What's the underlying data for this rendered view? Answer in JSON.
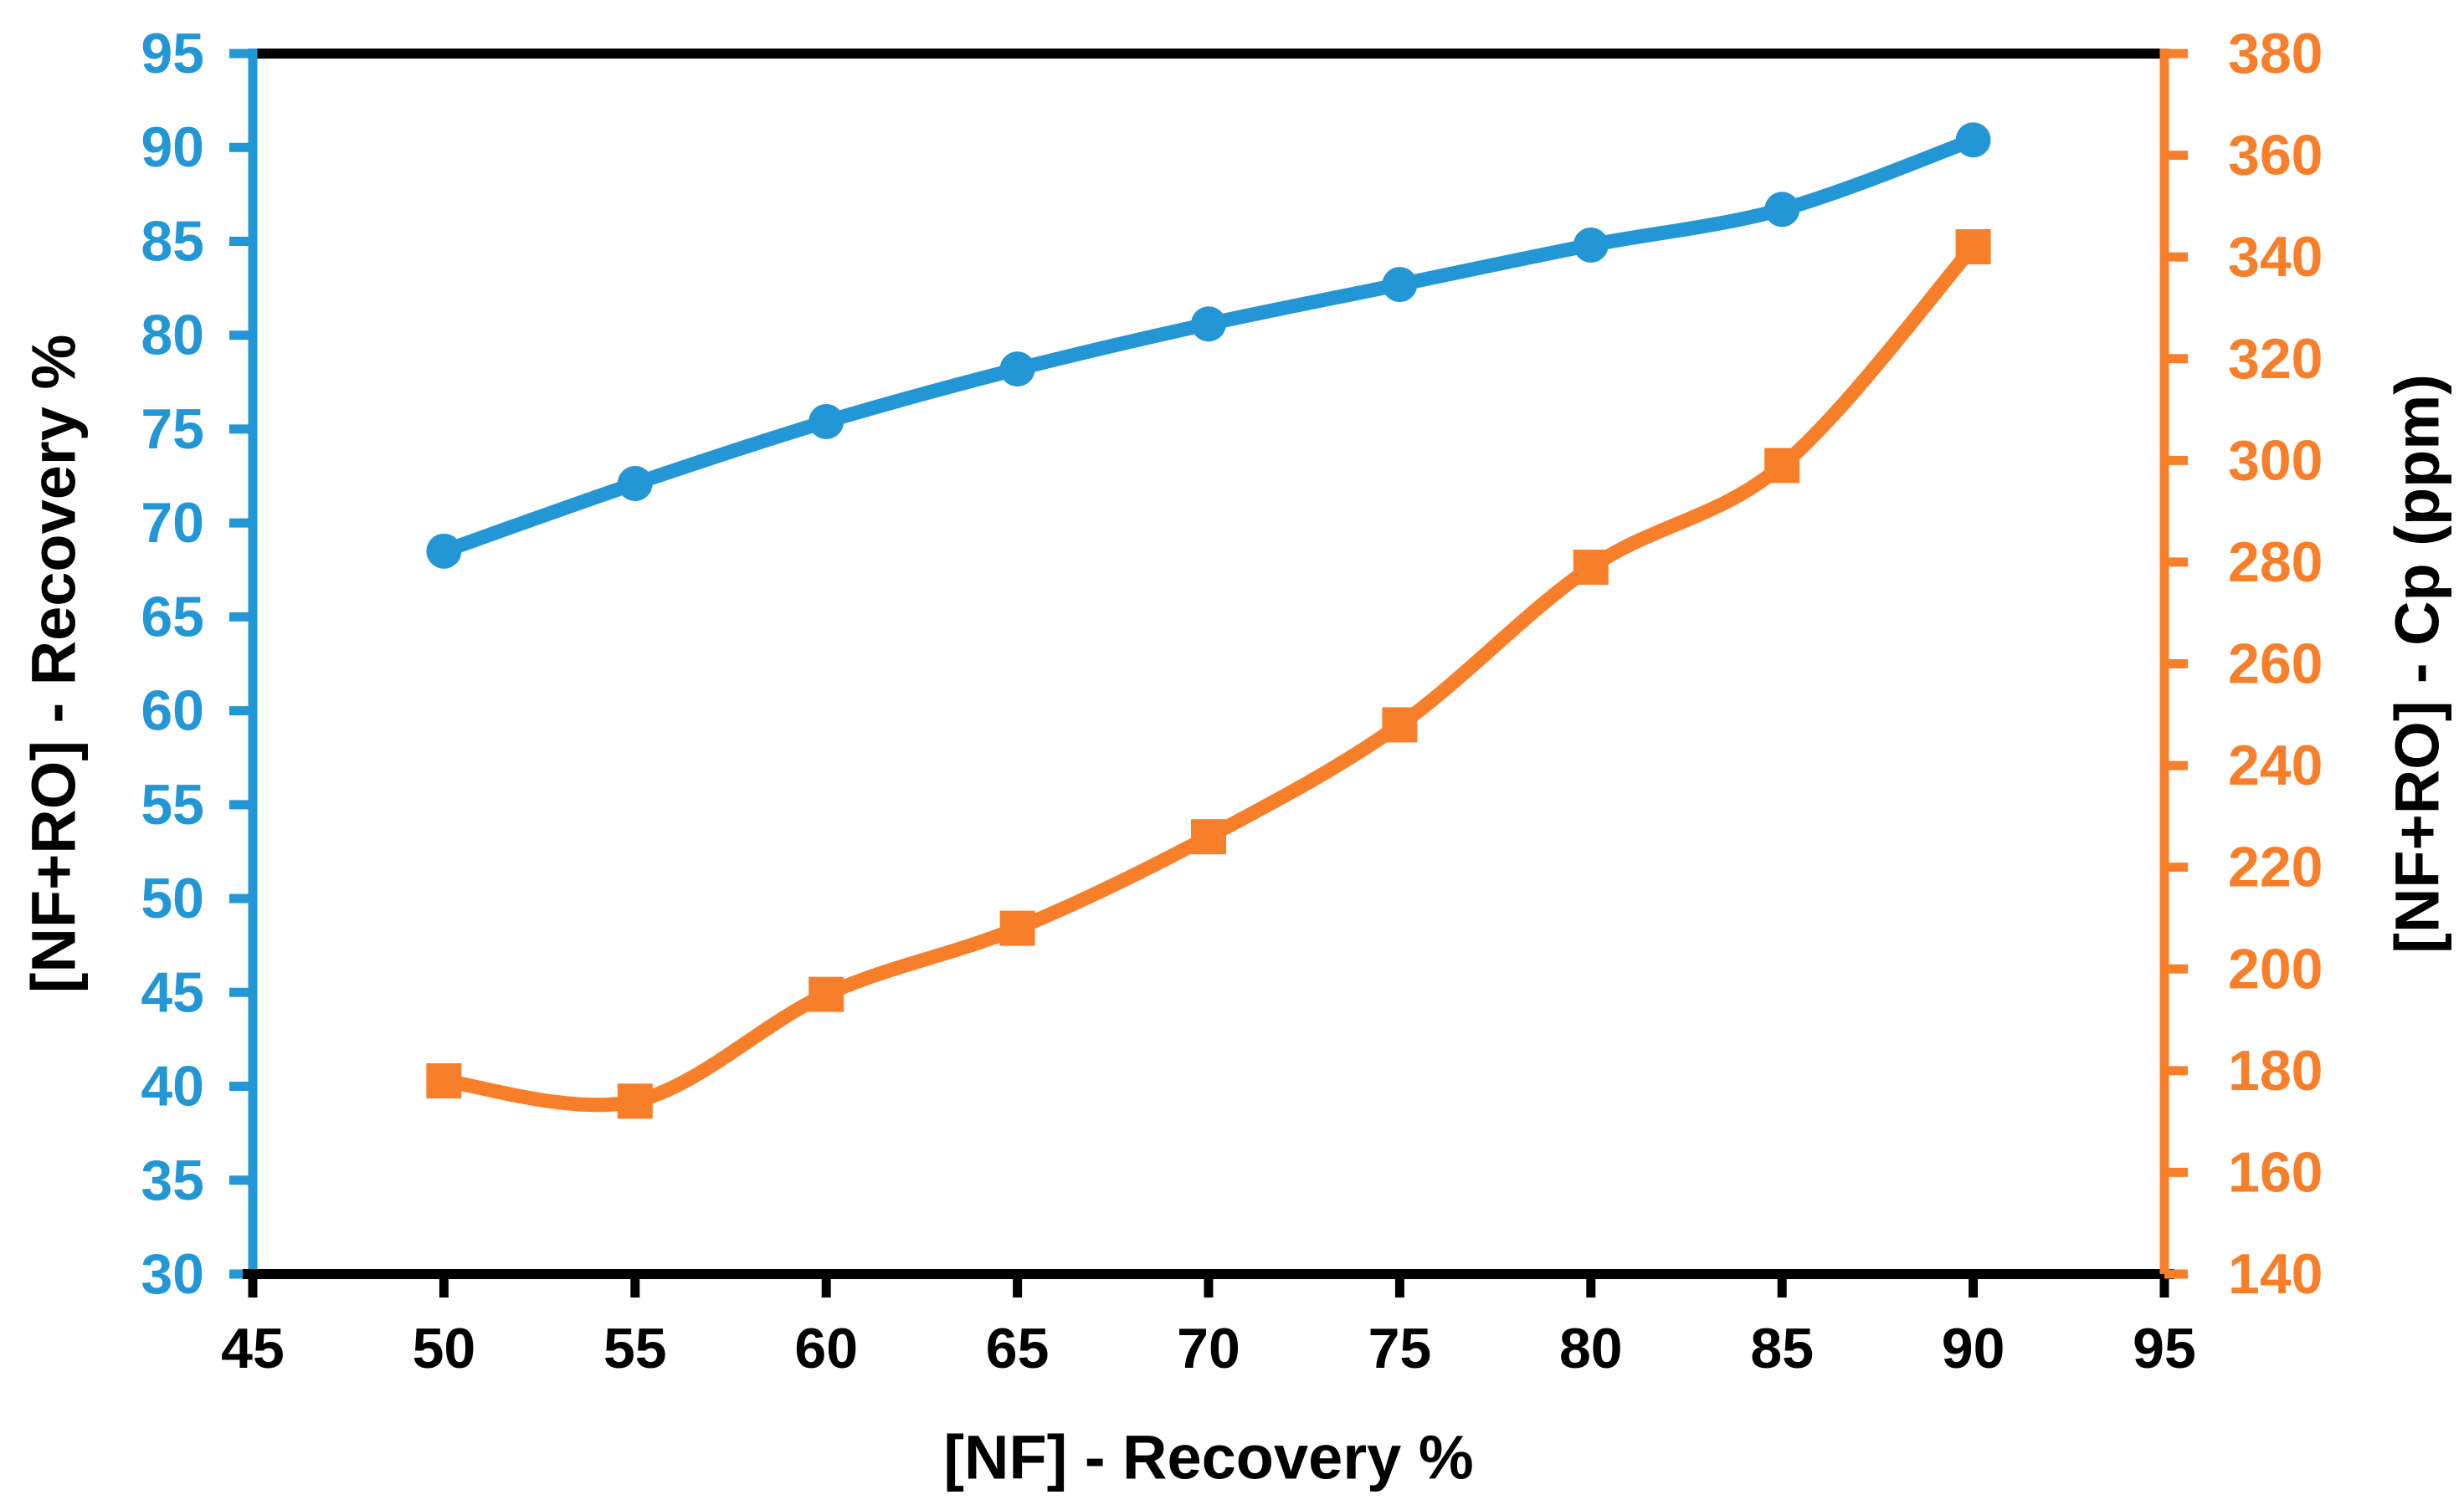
{
  "chart_data": {
    "type": "line",
    "title": "",
    "grid": false,
    "legend": "none",
    "background_color": "#ffffff",
    "x": [
      50,
      55,
      60,
      65,
      70,
      75,
      80,
      85,
      90
    ],
    "series": [
      {
        "name": "[NF+RO] - Recovery %",
        "axis": "left",
        "color": "#2397D5",
        "marker": "circle",
        "line_width": 17,
        "values": [
          68.5,
          72.1,
          75.4,
          78.2,
          80.6,
          82.7,
          84.8,
          86.7,
          90.4
        ]
      },
      {
        "name": "[NF+RO] - Cp (ppm)",
        "axis": "right",
        "color": "#F87F2A",
        "marker": "square",
        "line_width": 17,
        "values": [
          178,
          174,
          195,
          208,
          226,
          248,
          279,
          299,
          342
        ]
      }
    ],
    "x_axis": {
      "label": "[NF] - Recovery %",
      "min": 45,
      "max": 95,
      "step": 5,
      "tick_labels": [
        "45",
        "50",
        "55",
        "60",
        "65",
        "70",
        "75",
        "80",
        "85",
        "90",
        "95"
      ],
      "line_color": "#000000",
      "label_color": "#000000"
    },
    "y_axis_left": {
      "label": "[NF+RO] -  Recovery %",
      "min": 30,
      "max": 95,
      "step": 5,
      "tick_labels": [
        "30",
        "35",
        "40",
        "45",
        "50",
        "55",
        "60",
        "65",
        "70",
        "75",
        "80",
        "85",
        "90",
        "95"
      ],
      "line_color": "#2397D5",
      "label_color": "#2397D5",
      "title_color": "#000000"
    },
    "y_axis_right": {
      "label": "[NF+RO] -  Cp  (ppm)",
      "min": 140,
      "max": 380,
      "step": 20,
      "tick_labels": [
        "140",
        "160",
        "180",
        "200",
        "220",
        "240",
        "260",
        "280",
        "300",
        "320",
        "340",
        "360",
        "380"
      ],
      "line_color": "#F87F2A",
      "label_color": "#F87F2A",
      "title_color": "#000000"
    }
  }
}
